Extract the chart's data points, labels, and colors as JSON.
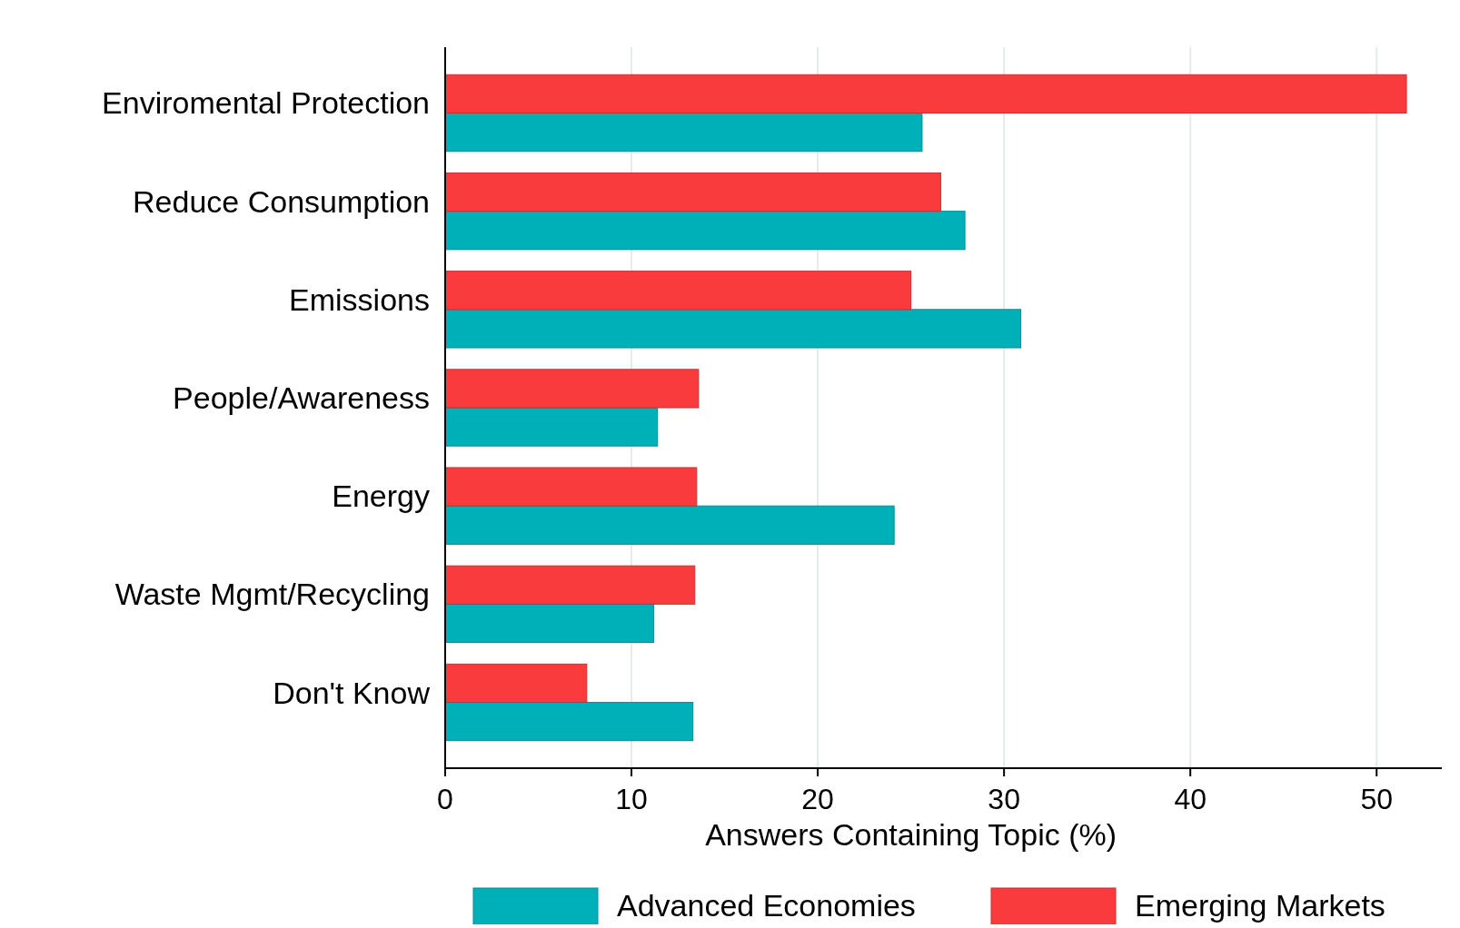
{
  "chart_data": {
    "type": "bar",
    "orientation": "horizontal",
    "xlabel": "Answers Containing Topic (%)",
    "categories": [
      "Enviromental Protection",
      "Reduce Consumption",
      "Emissions",
      "People/Awareness",
      "Energy",
      "Waste Mgmt/Recycling",
      "Don't Know"
    ],
    "series": [
      {
        "name": "Advanced Economies",
        "color": "#00b0b9",
        "values": [
          25.6,
          27.9,
          30.9,
          11.4,
          24.1,
          11.2,
          13.3
        ]
      },
      {
        "name": "Emerging Markets",
        "color": "#f93b3e",
        "values": [
          51.6,
          26.6,
          25.0,
          13.6,
          13.5,
          13.4,
          7.6
        ]
      }
    ],
    "xlim": [
      0,
      53.5
    ],
    "xticks": [
      0,
      10,
      20,
      30,
      40,
      50
    ],
    "grid": "x",
    "legend": "bottom"
  }
}
